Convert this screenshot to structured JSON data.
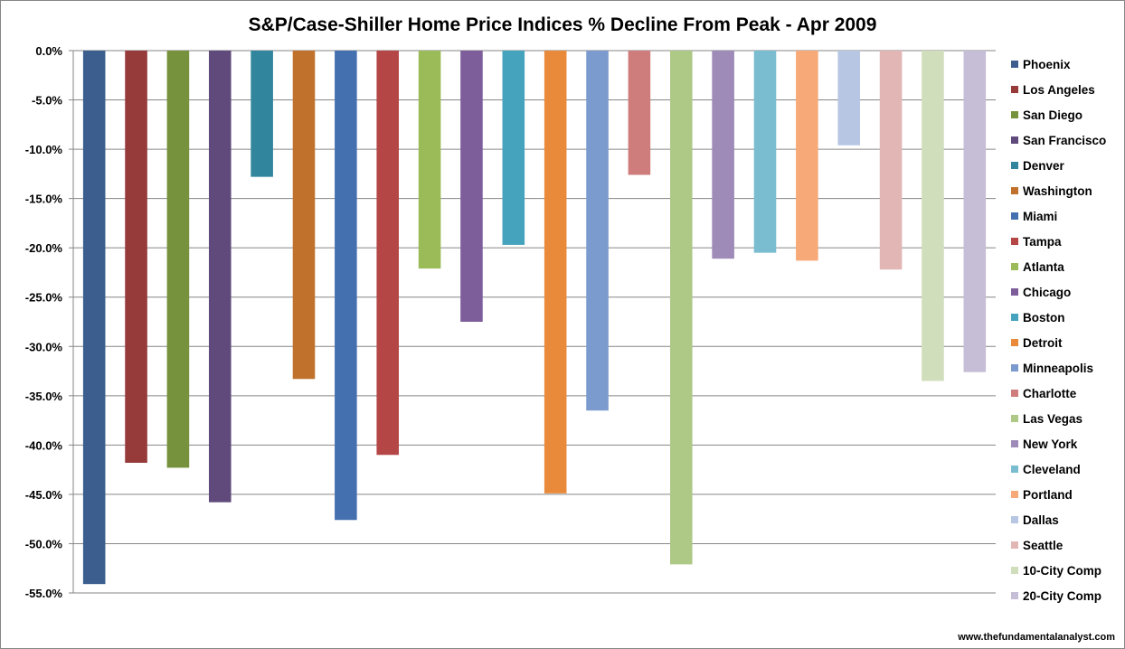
{
  "chart_data": {
    "type": "bar",
    "title": "S&P/Case-Shiller Home Price Indices % Decline From Peak - Apr 2009",
    "xlabel": "",
    "ylabel": "",
    "ylim": [
      -55,
      0
    ],
    "y_tick_step": 5,
    "y_tick_labels": [
      "0.0%",
      "-5.0%",
      "-10.0%",
      "-15.0%",
      "-20.0%",
      "-25.0%",
      "-30.0%",
      "-35.0%",
      "-40.0%",
      "-45.0%",
      "-50.0%",
      "-55.0%"
    ],
    "grid": true,
    "legend_position": "right",
    "categories": [
      "Phoenix",
      "Los Angeles",
      "San Diego",
      "San Francisco",
      "Denver",
      "Washington",
      "Miami",
      "Tampa",
      "Atlanta",
      "Chicago",
      "Boston",
      "Detroit",
      "Minneapolis",
      "Charlotte",
      "Las Vegas",
      "New York",
      "Cleveland",
      "Portland",
      "Dallas",
      "Seattle",
      "10-City Comp",
      "20-City Comp"
    ],
    "values": [
      -54.1,
      -41.8,
      -42.3,
      -45.8,
      -12.8,
      -33.3,
      -47.6,
      -41.0,
      -22.1,
      -27.5,
      -19.7,
      -44.9,
      -36.5,
      -12.6,
      -52.1,
      -21.1,
      -20.5,
      -21.3,
      -9.6,
      -22.2,
      -33.5,
      -32.6
    ],
    "colors": [
      "#3B5E8E",
      "#963A3A",
      "#76923C",
      "#5F4A7B",
      "#31859C",
      "#C0712C",
      "#4470B0",
      "#B54646",
      "#9BBB59",
      "#7D5E9B",
      "#46A3BD",
      "#E98A3B",
      "#7B9ACD",
      "#CF7C7C",
      "#AEC986",
      "#9E8BB7",
      "#7BBDD0",
      "#F8A978",
      "#B6C6E3",
      "#E3B6B6",
      "#D1DEBB",
      "#C6BDD6"
    ]
  },
  "credit": "www.thefundamentalanalyst.com"
}
